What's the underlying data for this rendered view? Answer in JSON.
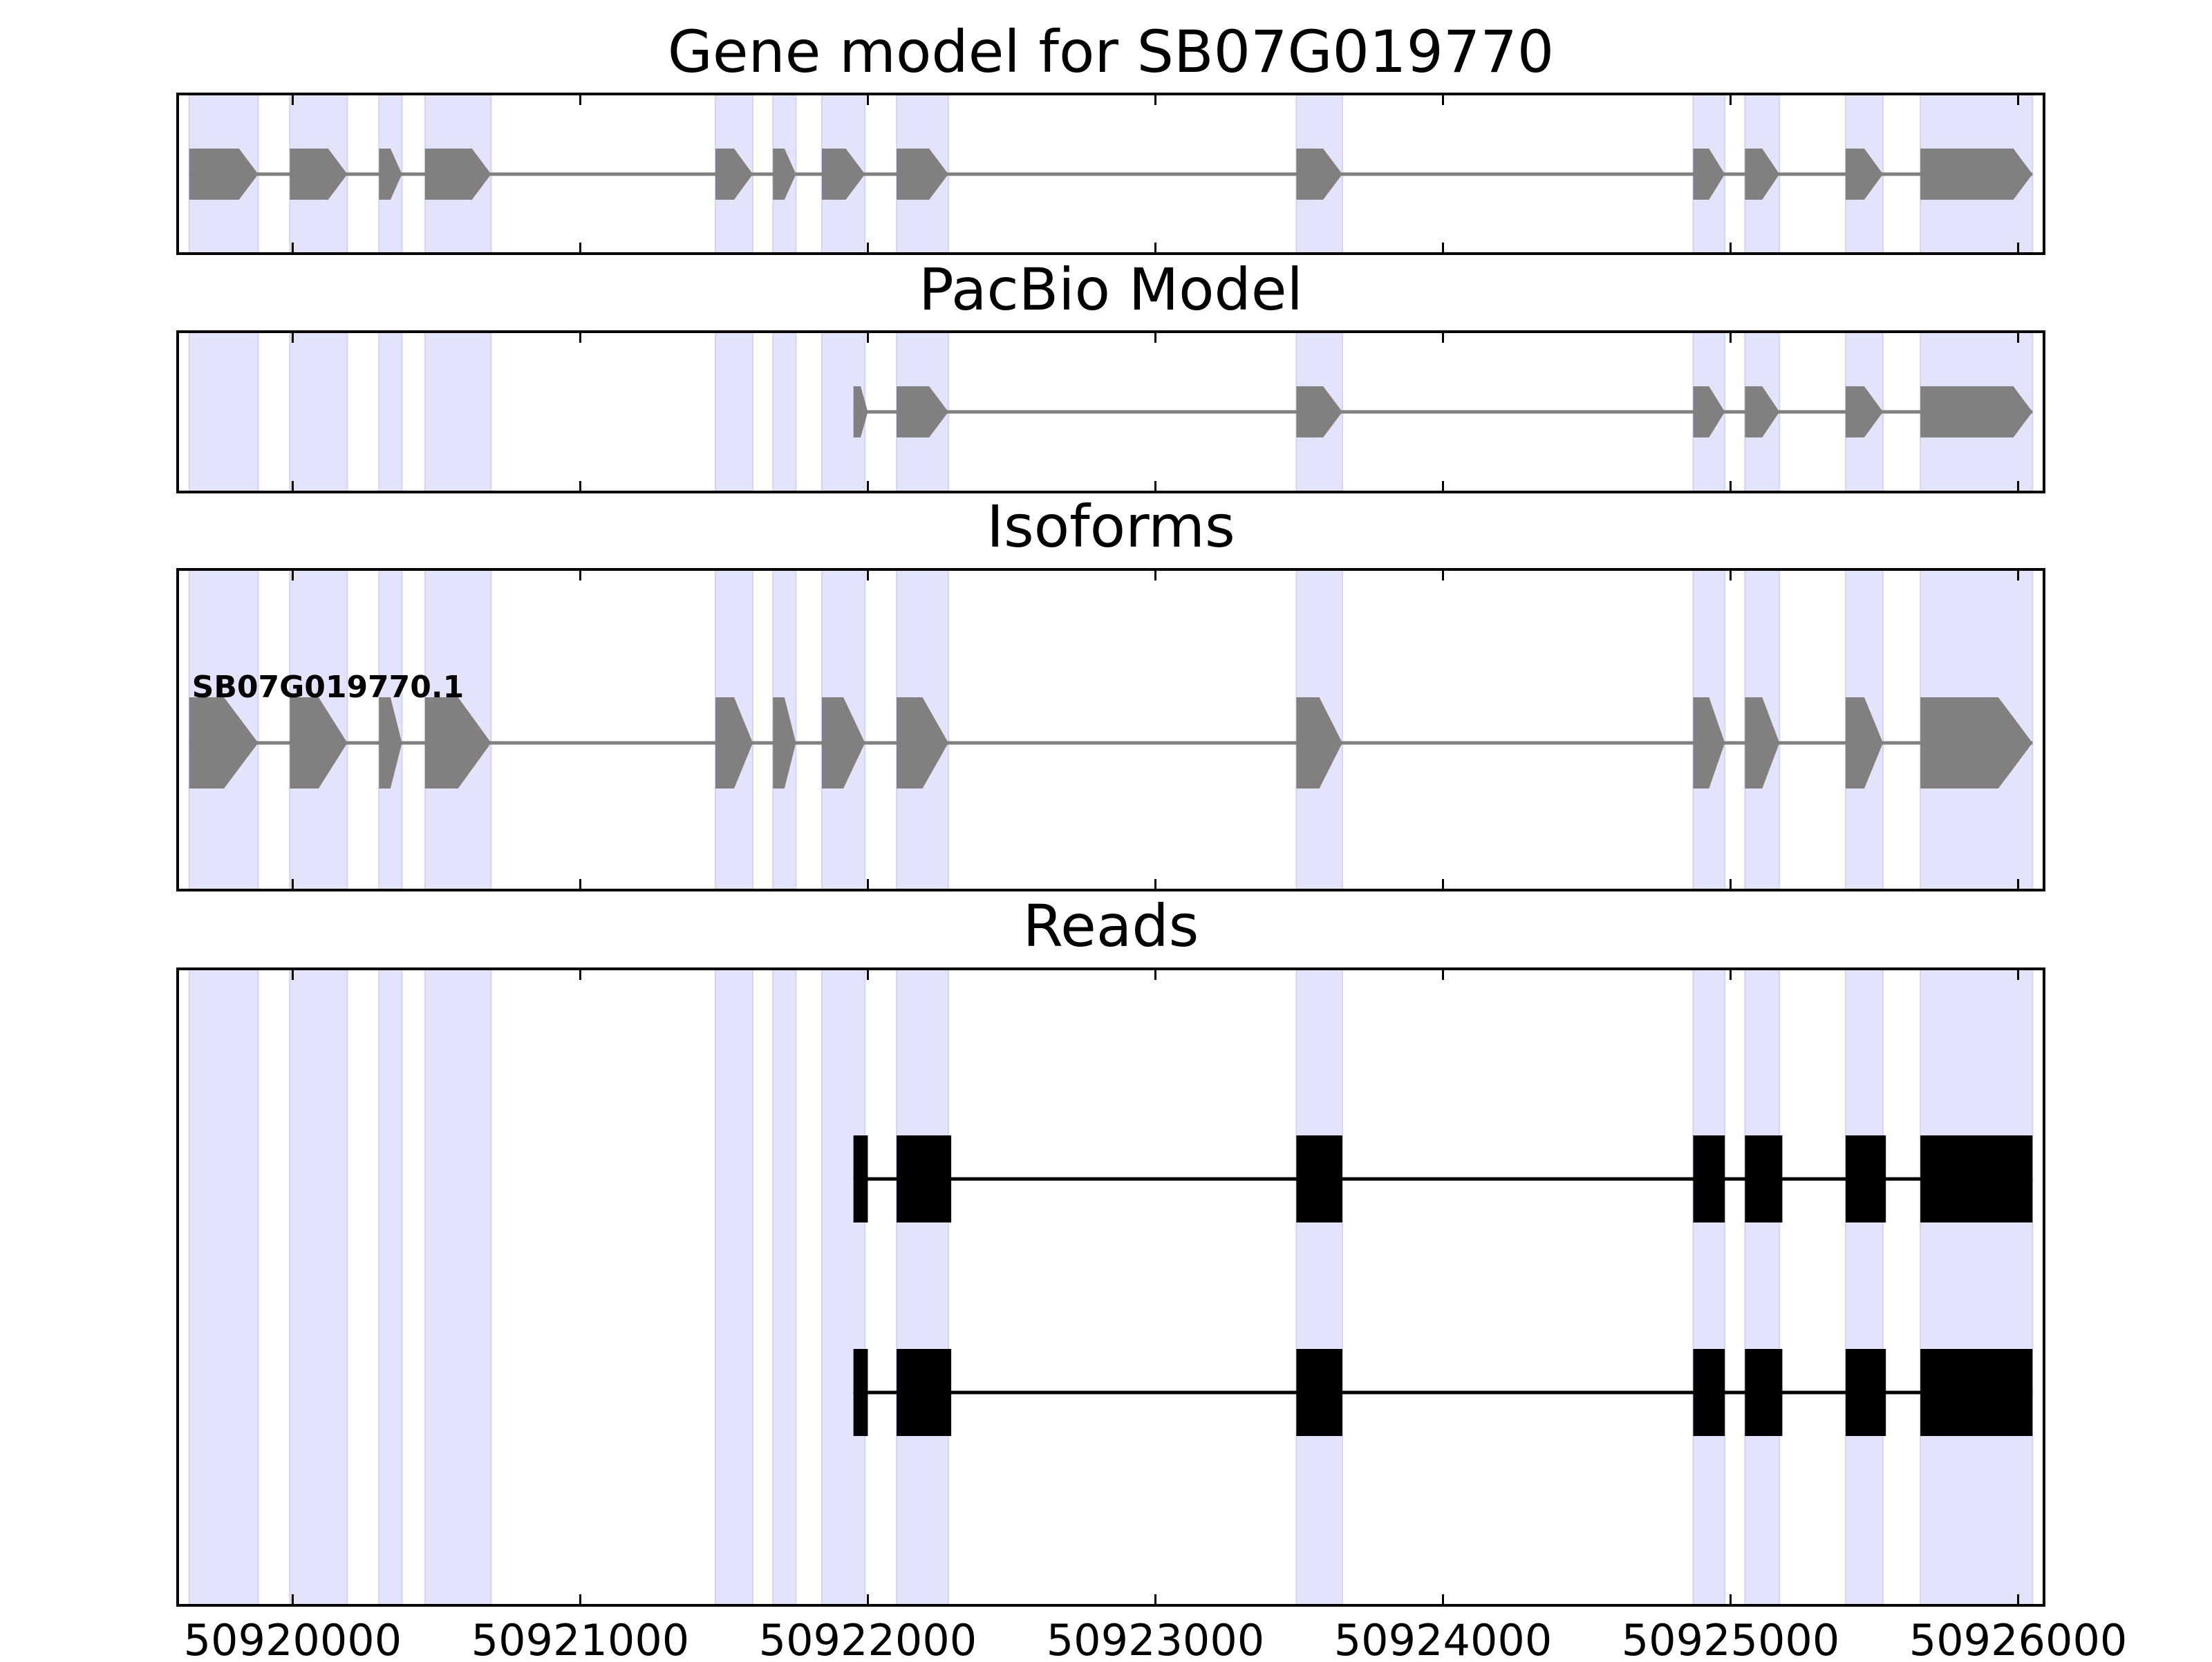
{
  "chart_data": {
    "type": "gene-model-tracks",
    "x_range": [
      50919600,
      50926090
    ],
    "x_ticks": [
      50920000,
      50921000,
      50922000,
      50923000,
      50924000,
      50925000,
      50926000
    ],
    "x_tick_labels": [
      "50920000",
      "50921000",
      "50922000",
      "50923000",
      "50924000",
      "50925000",
      "50926000"
    ],
    "colors": {
      "highlight": "#e3e3fc",
      "exon_gray": "#808080",
      "intron_gray": "#808080",
      "read_black": "#000000",
      "frame": "#000000"
    },
    "highlight_regions": [
      [
        50919640,
        50919880
      ],
      [
        50919990,
        50920190
      ],
      [
        50920300,
        50920380
      ],
      [
        50920460,
        50920690
      ],
      [
        50921470,
        50921600
      ],
      [
        50921670,
        50921750
      ],
      [
        50921840,
        50921990
      ],
      [
        50922100,
        50922280
      ],
      [
        50923490,
        50923650
      ],
      [
        50924870,
        50924980
      ],
      [
        50925050,
        50925170
      ],
      [
        50925400,
        50925530
      ],
      [
        50925660,
        50926050
      ]
    ],
    "panels": [
      {
        "id": "gene-model",
        "title": "Gene model for SB07G019770",
        "style": "gray-arrow",
        "transcripts": [
          {
            "label": "",
            "exons": [
              [
                50919640,
                50919880
              ],
              [
                50919990,
                50920190
              ],
              [
                50920300,
                50920380
              ],
              [
                50920460,
                50920690
              ],
              [
                50921470,
                50921600
              ],
              [
                50921670,
                50921750
              ],
              [
                50921840,
                50921990
              ],
              [
                50922100,
                50922280
              ],
              [
                50923490,
                50923650
              ],
              [
                50924870,
                50924980
              ],
              [
                50925050,
                50925170
              ],
              [
                50925400,
                50925530
              ],
              [
                50925660,
                50926050
              ]
            ]
          }
        ]
      },
      {
        "id": "pacbio-model",
        "title": "PacBio Model",
        "style": "gray-arrow",
        "transcripts": [
          {
            "label": "",
            "exons": [
              [
                50921950,
                50922000
              ],
              [
                50922100,
                50922280
              ],
              [
                50923490,
                50923650
              ],
              [
                50924870,
                50924980
              ],
              [
                50925050,
                50925170
              ],
              [
                50925400,
                50925530
              ],
              [
                50925660,
                50926050
              ]
            ]
          }
        ]
      },
      {
        "id": "isoforms",
        "title": "Isoforms",
        "style": "gray-arrow",
        "transcripts": [
          {
            "label": "SB07G019770.1",
            "exons": [
              [
                50919640,
                50919880
              ],
              [
                50919990,
                50920190
              ],
              [
                50920300,
                50920380
              ],
              [
                50920460,
                50920690
              ],
              [
                50921470,
                50921600
              ],
              [
                50921670,
                50921750
              ],
              [
                50921840,
                50921990
              ],
              [
                50922100,
                50922280
              ],
              [
                50923490,
                50923650
              ],
              [
                50924870,
                50924980
              ],
              [
                50925050,
                50925170
              ],
              [
                50925400,
                50925530
              ],
              [
                50925660,
                50926050
              ]
            ]
          }
        ]
      },
      {
        "id": "reads",
        "title": "Reads",
        "style": "black-box",
        "transcripts": [
          {
            "label": "",
            "exons": [
              [
                50921950,
                50922000
              ],
              [
                50922100,
                50922290
              ],
              [
                50923490,
                50923650
              ],
              [
                50924870,
                50924980
              ],
              [
                50925050,
                50925180
              ],
              [
                50925400,
                50925540
              ],
              [
                50925660,
                50926050
              ]
            ]
          },
          {
            "label": "",
            "exons": [
              [
                50921950,
                50922000
              ],
              [
                50922100,
                50922290
              ],
              [
                50923490,
                50923650
              ],
              [
                50924870,
                50924980
              ],
              [
                50925050,
                50925180
              ],
              [
                50925400,
                50925540
              ],
              [
                50925660,
                50926050
              ]
            ]
          }
        ]
      }
    ]
  }
}
